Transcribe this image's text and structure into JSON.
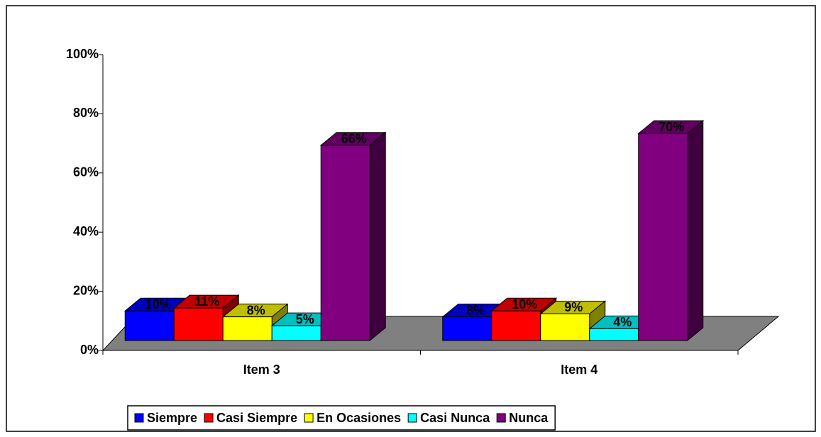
{
  "chart_data": {
    "type": "bar3d",
    "categories": [
      "Item 3",
      "Item 4"
    ],
    "series": [
      {
        "name": "Siempre",
        "color": "#0000ff",
        "values": [
          10,
          8
        ],
        "value_labels": [
          "10%",
          "8%"
        ]
      },
      {
        "name": "Casi Siempre",
        "color": "#ff0000",
        "values": [
          11,
          10
        ],
        "value_labels": [
          "11%",
          "10%"
        ]
      },
      {
        "name": "En Ocasiones",
        "color": "#ffff00",
        "values": [
          8,
          9
        ],
        "value_labels": [
          "8%",
          "9%"
        ]
      },
      {
        "name": "Casi Nunca",
        "color": "#00ffff",
        "values": [
          5,
          4
        ],
        "value_labels": [
          "5%",
          "4%"
        ]
      },
      {
        "name": "Nunca",
        "color": "#800080",
        "values": [
          66,
          70
        ],
        "value_labels": [
          "66%",
          "70%"
        ]
      }
    ],
    "ylim": [
      0,
      100
    ],
    "yticks": [
      {
        "value": 0,
        "label": "0%"
      },
      {
        "value": 20,
        "label": "20%"
      },
      {
        "value": 40,
        "label": "40%"
      },
      {
        "value": 60,
        "label": "60%"
      },
      {
        "value": 80,
        "label": "80%"
      },
      {
        "value": 100,
        "label": "100%"
      }
    ],
    "floor_color": "#808080",
    "legend": "bottom"
  }
}
